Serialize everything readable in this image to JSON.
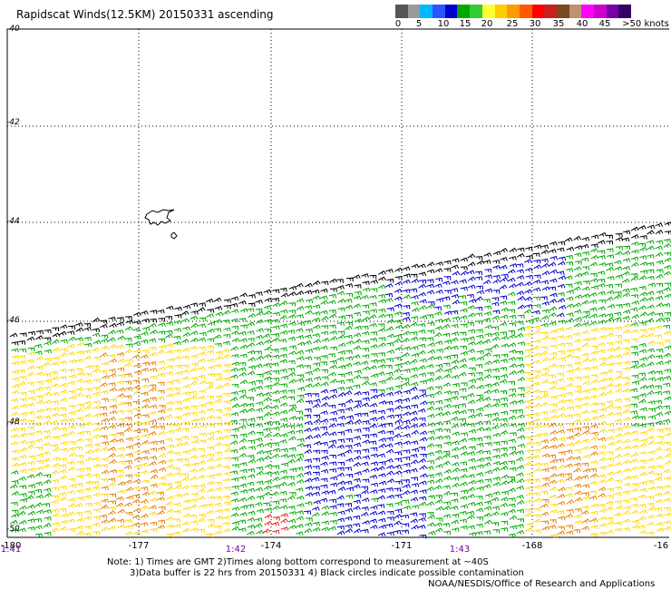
{
  "title": "Rapidscat Winds(12.5KM) 20150331 ascending",
  "legend": {
    "colors": [
      "#555555",
      "#9a9a9a",
      "#00b8ff",
      "#2a55ff",
      "#0000cc",
      "#00aa00",
      "#33cc33",
      "#ffff33",
      "#ffcc00",
      "#ff9900",
      "#ff5a00",
      "#ff0000",
      "#cc2020",
      "#7a4a20",
      "#c09070",
      "#ff00ff",
      "#cc00cc",
      "#7700aa",
      "#330066"
    ],
    "labels": [
      "0",
      "5",
      "10",
      "15",
      "20",
      "25",
      "30",
      "35",
      "40",
      "45",
      ">50 knots"
    ]
  },
  "latitude_labels": [
    "-40",
    "-42",
    "-44",
    "-46",
    "-48",
    "-50"
  ],
  "longitude_labels": [
    "-180",
    "-177",
    "-174",
    "-171",
    "-168",
    "-16"
  ],
  "time_labels": [
    "1:41",
    "1:42",
    "1:43"
  ],
  "notes": [
    "Note: 1) Times are GMT  2)Times along bottom correspond to measurement at ~40S",
    "3)Data buffer is 22 hrs from 20150331  4) Black circles indicate possible contamination"
  ],
  "credit": "NOAA/NESDIS/Office of Research and Applications",
  "wind_colors": {
    "black": "#000000",
    "green": "#00aa00",
    "blue": "#0000cc",
    "yellow": "#ffd700",
    "orange": "#e67e00",
    "red": "#e02020"
  }
}
